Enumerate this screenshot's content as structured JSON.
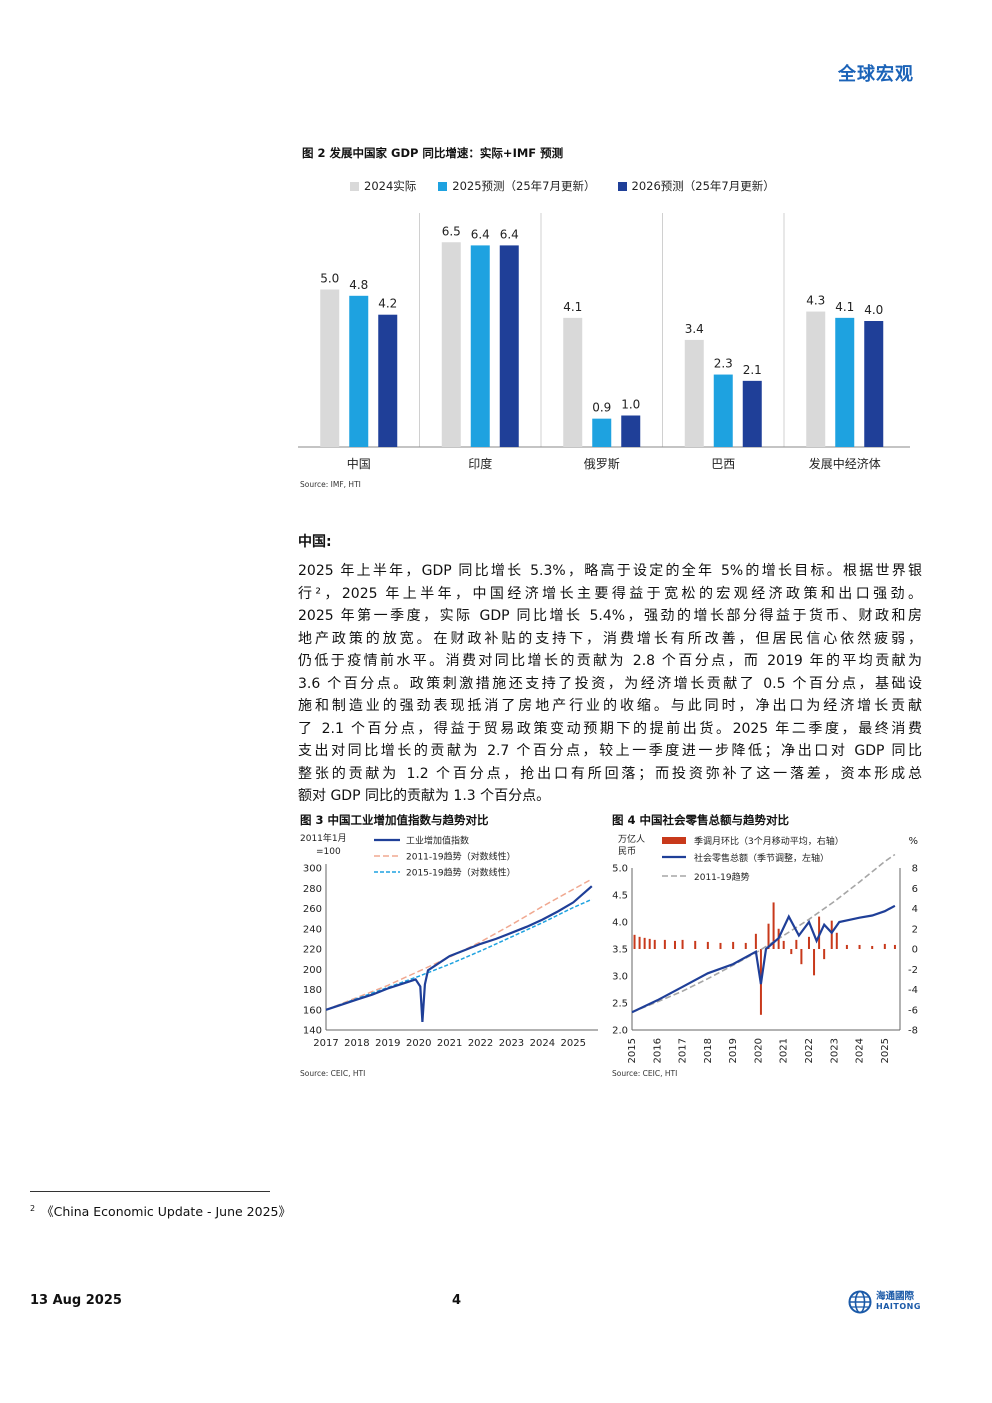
{
  "header": {
    "section": "全球宏观"
  },
  "fig2": {
    "title": "图 2 发展中国家 GDP 同比增速：实际+IMF 预测",
    "source": "Source: IMF, HTI",
    "colors": [
      "#d9d9d9",
      "#1ea2e0",
      "#1f3f98"
    ],
    "chart_data": {
      "type": "bar",
      "categories": [
        "中国",
        "印度",
        "俄罗斯",
        "巴西",
        "发展中经济体"
      ],
      "series": [
        {
          "name": "2024实际",
          "values": [
            5.0,
            6.5,
            4.1,
            3.4,
            4.3
          ]
        },
        {
          "name": "2025预测（25年7月更新）",
          "values": [
            4.8,
            6.4,
            0.9,
            2.3,
            4.1
          ]
        },
        {
          "name": "2026预测（25年7月更新）",
          "values": [
            4.2,
            6.4,
            1.0,
            2.1,
            4.0
          ]
        }
      ],
      "ylim": [
        0,
        7
      ],
      "legend": "top"
    }
  },
  "section_heading": "中国:",
  "body_lines": [
    "2025 年上半年，GDP 同比增长 5.3%，略高于设定的全年 5%的增长目标。根据世界银",
    "行²，2025 年上半年，中国经济增长主要得益于宽松的宏观经济政策和出口强劲。",
    "2025 年第一季度，实际 GDP 同比增长 5.4%，强劲的增长部分得益于货币、财政和房",
    "地产政策的放宽。在财政补贴的支持下，消费增长有所改善，但居民信心依然疲弱，",
    "仍低于疫情前水平。消费对同比增长的贡献为 2.8 个百分点，而 2019 年的平均贡献为",
    "3.6 个百分点。政策刺激措施还支持了投资，为经济增长贡献了 0.5 个百分点，基础设",
    "施和制造业的强劲表现抵消了房地产行业的收缩。与此同时，净出口为经济增长贡献",
    "了 2.1 个百分点，得益于贸易政策变动预期下的提前出货。2025 年二季度，最终消费",
    "支出对同比增长的贡献为 2.7 个百分点，较上一季度进一步降低；净出口对 GDP 同比",
    "整张的贡献为 1.2 个百分点，抢出口有所回落；而投资弥补了这一落差，资本形成总",
    "额对 GDP 同比的贡献为 1.3 个百分点。"
  ],
  "fig3": {
    "title": "图 3 中国工业增加值指数与趋势对比",
    "source": "Source: CEIC, HTI",
    "chart_data": {
      "type": "line",
      "ylabel": "2011年1月=100",
      "ylabel_lines": [
        "2011年1月",
        "=100"
      ],
      "yticks": [
        140,
        160,
        180,
        200,
        220,
        240,
        260,
        280,
        300
      ],
      "xticks": [
        "2017",
        "2018",
        "2019",
        "2020",
        "2021",
        "2022",
        "2023",
        "2024",
        "2025"
      ],
      "ylim": [
        140,
        300
      ],
      "series": [
        {
          "name": "工业增加值指数",
          "color": "#1f3f98",
          "points": [
            [
              2017.0,
              160
            ],
            [
              2017.5,
              165
            ],
            [
              2018.0,
              170
            ],
            [
              2018.5,
              175
            ],
            [
              2019.0,
              181
            ],
            [
              2019.5,
              186
            ],
            [
              2019.9,
              190
            ],
            [
              2020.05,
              183
            ],
            [
              2020.12,
              148
            ],
            [
              2020.2,
              185
            ],
            [
              2020.3,
              199
            ],
            [
              2020.6,
              205
            ],
            [
              2021.0,
              213
            ],
            [
              2021.5,
              219
            ],
            [
              2022.0,
              225
            ],
            [
              2022.5,
              230
            ],
            [
              2023.0,
              236
            ],
            [
              2023.5,
              242
            ],
            [
              2024.0,
              249
            ],
            [
              2024.5,
              257
            ],
            [
              2025.0,
              266
            ],
            [
              2025.6,
              282
            ]
          ]
        },
        {
          "name": "2011-19趋势（对数线性）",
          "color": "#f0a890",
          "points": [
            [
              2017.0,
              160
            ],
            [
              2018.0,
              172
            ],
            [
              2019.0,
              184
            ],
            [
              2020.0,
              198
            ],
            [
              2021.0,
              212
            ],
            [
              2022.0,
              227
            ],
            [
              2023.0,
              244
            ],
            [
              2024.0,
              262
            ],
            [
              2025.0,
              279
            ],
            [
              2025.6,
              289
            ]
          ]
        },
        {
          "name": "2015-19趋势（对数线性）",
          "color": "#1ea2e0",
          "points": [
            [
              2017.0,
              160
            ],
            [
              2018.0,
              171
            ],
            [
              2019.0,
              182
            ],
            [
              2020.0,
              193
            ],
            [
              2021.0,
              205
            ],
            [
              2022.0,
              218
            ],
            [
              2023.0,
              232
            ],
            [
              2024.0,
              246
            ],
            [
              2025.0,
              261
            ],
            [
              2025.6,
              269
            ]
          ]
        }
      ]
    }
  },
  "fig4": {
    "title": "图 4 中国社会零售总额与趋势对比",
    "source": "Source: CEIC, HTI",
    "chart_data": {
      "type": "line",
      "ylabel_left": "万亿人民币",
      "ylabel_left_lines": [
        "万亿人",
        "民币"
      ],
      "ylabel_right": "%",
      "yticks_left": [
        2.0,
        2.5,
        3.0,
        3.5,
        4.0,
        4.5,
        5.0
      ],
      "yticks_right": [
        -8,
        -6,
        -4,
        -2,
        0,
        2,
        4,
        6,
        8
      ],
      "xticks": [
        "2015",
        "2016",
        "2017",
        "2018",
        "2019",
        "2020",
        "2021",
        "2022",
        "2023",
        "2024",
        "2025"
      ],
      "ylim_left": [
        2.0,
        5.0
      ],
      "ylim_right": [
        -8,
        8
      ],
      "bars": {
        "name": "季调月环比（3个月移动平均，右轴）",
        "color": "#c8391b",
        "points": [
          [
            2015.1,
            1.4
          ],
          [
            2015.3,
            1.2
          ],
          [
            2015.5,
            1.1
          ],
          [
            2015.7,
            1.0
          ],
          [
            2015.9,
            0.9
          ],
          [
            2016.3,
            0.9
          ],
          [
            2016.7,
            0.8
          ],
          [
            2017.0,
            0.9
          ],
          [
            2017.5,
            0.8
          ],
          [
            2018.0,
            0.7
          ],
          [
            2018.5,
            0.6
          ],
          [
            2019.0,
            0.7
          ],
          [
            2019.5,
            0.6
          ],
          [
            2019.9,
            1.5
          ],
          [
            2020.1,
            -6.5
          ],
          [
            2020.4,
            2.5
          ],
          [
            2020.6,
            4.6
          ],
          [
            2020.8,
            2.0
          ],
          [
            2021.0,
            0.8
          ],
          [
            2021.3,
            -0.5
          ],
          [
            2021.5,
            0.9
          ],
          [
            2021.7,
            -1.5
          ],
          [
            2022.0,
            1.2
          ],
          [
            2022.2,
            -2.6
          ],
          [
            2022.4,
            3.2
          ],
          [
            2022.6,
            -1.0
          ],
          [
            2022.9,
            2.8
          ],
          [
            2023.1,
            1.6
          ],
          [
            2023.5,
            0.4
          ],
          [
            2024.0,
            0.4
          ],
          [
            2024.5,
            0.3
          ],
          [
            2025.0,
            0.5
          ],
          [
            2025.4,
            0.4
          ]
        ]
      },
      "series": [
        {
          "name": "社会零售总额（季节调整，左轴）",
          "color": "#1f3f98",
          "points": [
            [
              2015.0,
              2.33
            ],
            [
              2016.0,
              2.55
            ],
            [
              2017.0,
              2.8
            ],
            [
              2018.0,
              3.05
            ],
            [
              2019.0,
              3.22
            ],
            [
              2019.9,
              3.45
            ],
            [
              2020.1,
              2.85
            ],
            [
              2020.3,
              3.5
            ],
            [
              2020.8,
              3.7
            ],
            [
              2021.2,
              4.1
            ],
            [
              2021.6,
              3.75
            ],
            [
              2022.0,
              4.0
            ],
            [
              2022.3,
              3.65
            ],
            [
              2022.6,
              3.95
            ],
            [
              2022.9,
              3.8
            ],
            [
              2023.2,
              4.0
            ],
            [
              2023.7,
              4.05
            ],
            [
              2024.0,
              4.08
            ],
            [
              2024.5,
              4.12
            ],
            [
              2025.0,
              4.2
            ],
            [
              2025.4,
              4.3
            ]
          ]
        },
        {
          "name": "2011-19趋势",
          "color": "#a6a6a6",
          "points": [
            [
              2015.0,
              2.33
            ],
            [
              2016.0,
              2.52
            ],
            [
              2017.0,
              2.72
            ],
            [
              2018.0,
              2.95
            ],
            [
              2019.0,
              3.2
            ],
            [
              2020.0,
              3.46
            ],
            [
              2021.0,
              3.75
            ],
            [
              2022.0,
              4.05
            ],
            [
              2023.0,
              4.38
            ],
            [
              2024.0,
              4.74
            ],
            [
              2025.0,
              5.12
            ],
            [
              2025.4,
              5.25
            ]
          ]
        }
      ]
    }
  },
  "footnote": {
    "marker": "2",
    "text": "《China Economic Update - June 2025》"
  },
  "footer": {
    "date": "13 Aug 2025",
    "page": "4",
    "logo_cn": "海通國際",
    "logo_en": "HAITONG"
  }
}
